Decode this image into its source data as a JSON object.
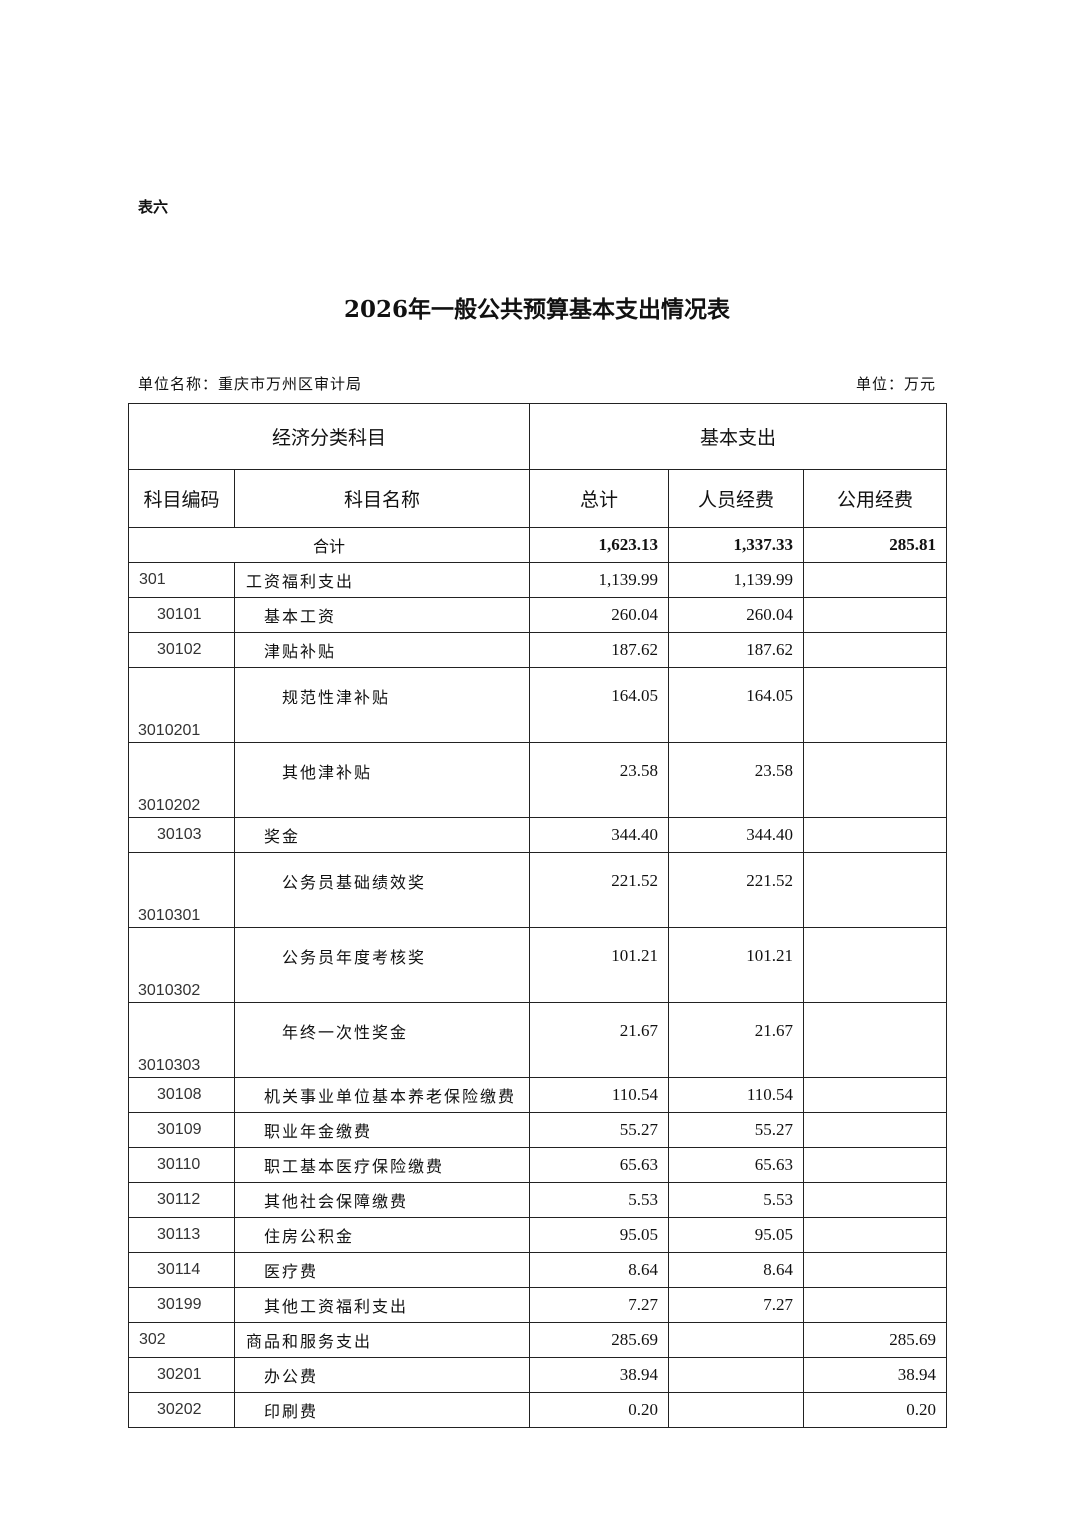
{
  "table_label": "表六",
  "title": "2026年一般公共预算基本支出情况表",
  "unit_name": "单位名称：重庆市万州区审计局",
  "unit": "单位：万元",
  "header": {
    "group_left": "经济分类科目",
    "group_right": "基本支出",
    "code": "科目编码",
    "name": "科目名称",
    "total": "总计",
    "personnel": "人员经费",
    "public": "公用经费"
  },
  "total_row": {
    "label": "合计",
    "total": "1,623.13",
    "personnel": "1,337.33",
    "public": "285.81"
  },
  "rows": [
    {
      "level": 1,
      "code": "301",
      "name": "工资福利支出",
      "total": "1,139.99",
      "personnel": "1,139.99",
      "public": ""
    },
    {
      "level": 2,
      "code": "30101",
      "name": "基本工资",
      "total": "260.04",
      "personnel": "260.04",
      "public": ""
    },
    {
      "level": 2,
      "code": "30102",
      "name": "津贴补贴",
      "total": "187.62",
      "personnel": "187.62",
      "public": ""
    },
    {
      "level": 3,
      "code": "3010201",
      "name": "规范性津补贴",
      "total": "164.05",
      "personnel": "164.05",
      "public": ""
    },
    {
      "level": 3,
      "code": "3010202",
      "name": "其他津补贴",
      "total": "23.58",
      "personnel": "23.58",
      "public": ""
    },
    {
      "level": 2,
      "code": "30103",
      "name": "奖金",
      "total": "344.40",
      "personnel": "344.40",
      "public": ""
    },
    {
      "level": 3,
      "code": "3010301",
      "name": "公务员基础绩效奖",
      "total": "221.52",
      "personnel": "221.52",
      "public": ""
    },
    {
      "level": 3,
      "code": "3010302",
      "name": "公务员年度考核奖",
      "total": "101.21",
      "personnel": "101.21",
      "public": ""
    },
    {
      "level": 3,
      "code": "3010303",
      "name": "年终一次性奖金",
      "total": "21.67",
      "personnel": "21.67",
      "public": ""
    },
    {
      "level": 2,
      "code": "30108",
      "name": "机关事业单位基本养老保险缴费",
      "total": "110.54",
      "personnel": "110.54",
      "public": ""
    },
    {
      "level": 2,
      "code": "30109",
      "name": "职业年金缴费",
      "total": "55.27",
      "personnel": "55.27",
      "public": ""
    },
    {
      "level": 2,
      "code": "30110",
      "name": "职工基本医疗保险缴费",
      "total": "65.63",
      "personnel": "65.63",
      "public": ""
    },
    {
      "level": 2,
      "code": "30112",
      "name": "其他社会保障缴费",
      "total": "5.53",
      "personnel": "5.53",
      "public": ""
    },
    {
      "level": 2,
      "code": "30113",
      "name": "住房公积金",
      "total": "95.05",
      "personnel": "95.05",
      "public": ""
    },
    {
      "level": 2,
      "code": "30114",
      "name": "医疗费",
      "total": "8.64",
      "personnel": "8.64",
      "public": ""
    },
    {
      "level": 2,
      "code": "30199",
      "name": "其他工资福利支出",
      "total": "7.27",
      "personnel": "7.27",
      "public": ""
    },
    {
      "level": 1,
      "code": "302",
      "name": "商品和服务支出",
      "total": "285.69",
      "personnel": "",
      "public": "285.69"
    },
    {
      "level": 2,
      "code": "30201",
      "name": "办公费",
      "total": "38.94",
      "personnel": "",
      "public": "38.94"
    },
    {
      "level": 2,
      "code": "30202",
      "name": "印刷费",
      "total": "0.20",
      "personnel": "",
      "public": "0.20"
    }
  ]
}
